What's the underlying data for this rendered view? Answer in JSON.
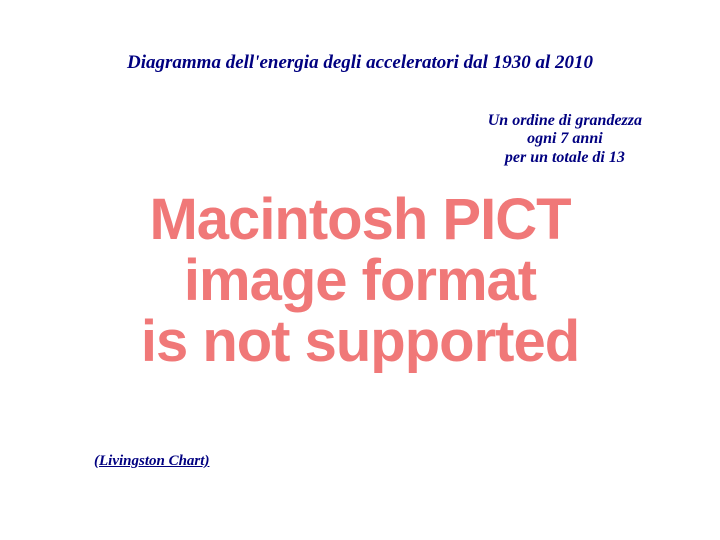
{
  "title": {
    "text": "Diagramma dell'energia degli acceleratori dal 1930 al 2010",
    "color": "#000080",
    "fontsize": 19,
    "style": "bold italic"
  },
  "subtitle": {
    "line1": "Un ordine di grandezza",
    "line2": "ogni 7 anni",
    "line3": "per un totale di 13",
    "color": "#000080",
    "fontsize": 16,
    "style": "bold italic"
  },
  "pict_error": {
    "line1": "Macintosh PICT",
    "line2": "image format",
    "line3": "is not supported",
    "color": "#f07878",
    "fontsize": 58,
    "font_family": "Arial"
  },
  "footer": {
    "text": "(Livingston Chart)",
    "color": "#000080",
    "fontsize": 15,
    "style": "bold italic underline"
  },
  "background_color": "#ffffff"
}
